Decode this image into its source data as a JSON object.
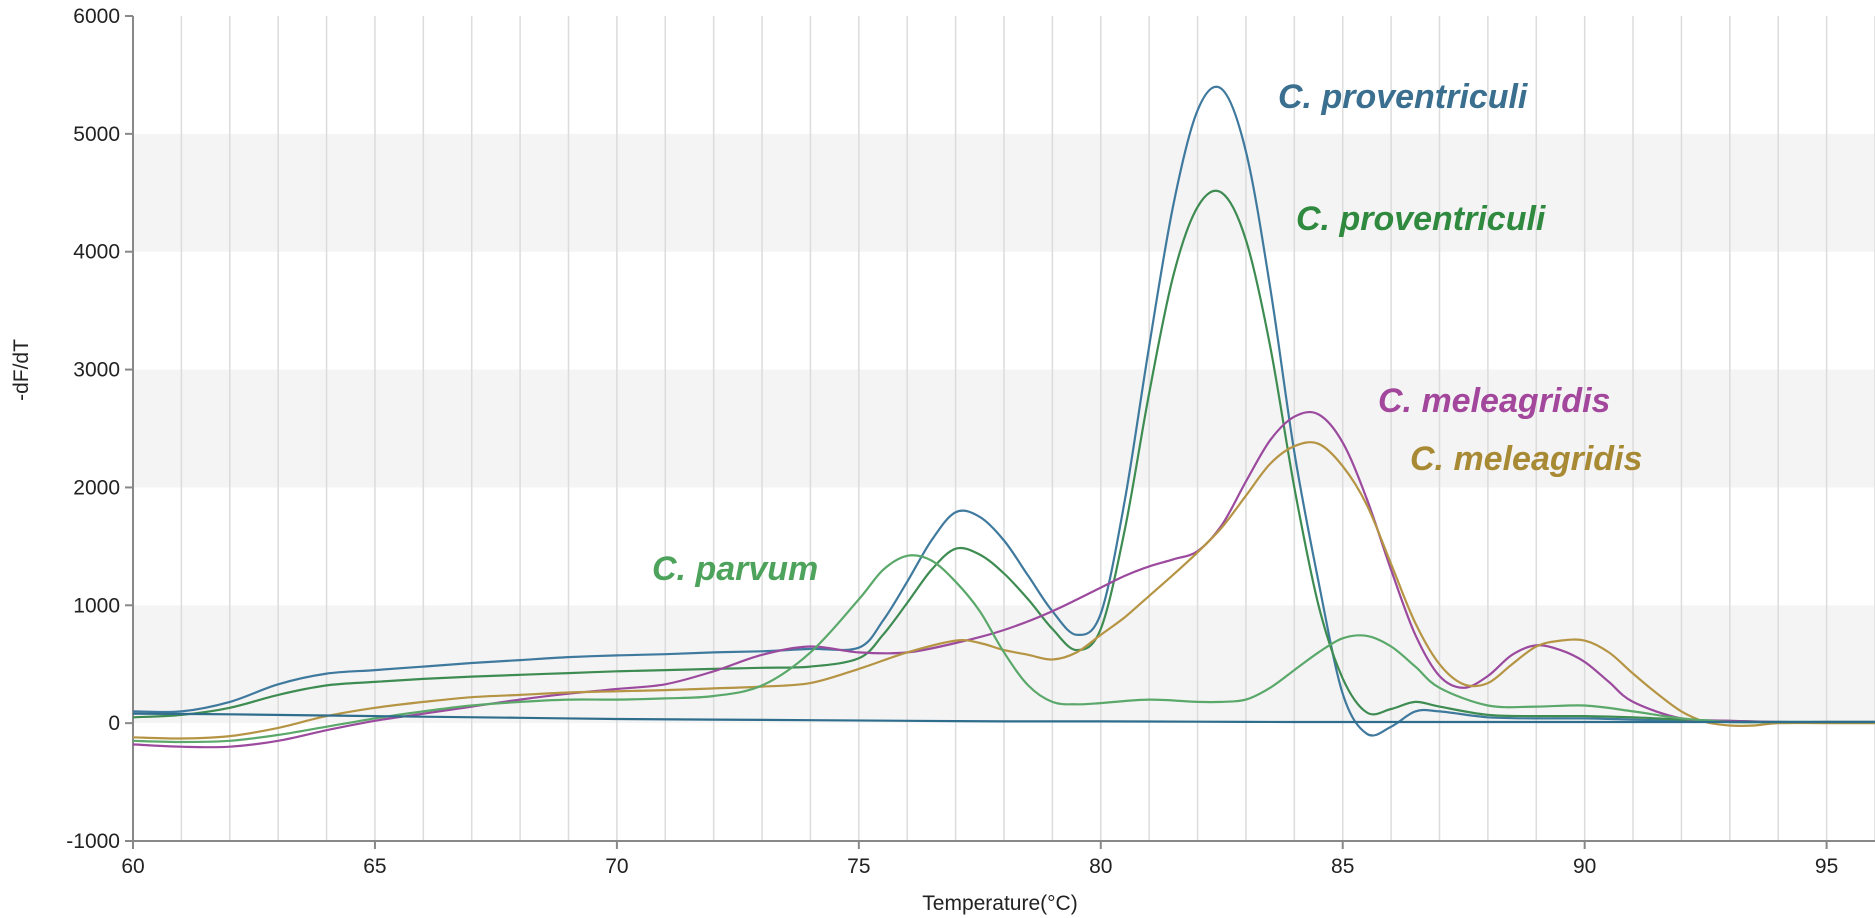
{
  "chart_data": {
    "type": "line",
    "title": "",
    "xlabel": "Temperature(°C)",
    "ylabel": "-dF/dT",
    "xlim": [
      60,
      96
    ],
    "ylim": [
      -1000,
      6000
    ],
    "xticks": [
      60,
      65,
      70,
      75,
      80,
      85,
      90,
      95
    ],
    "yticks": [
      -1000,
      0,
      1000,
      2000,
      3000,
      4000,
      5000,
      6000
    ],
    "grid": "vertical gridlines every 1 °C; alternating horizontal bands",
    "legend": "none",
    "annotations": [
      {
        "text": "C. proventriculi",
        "color": "#3a6f8f",
        "series": "blue"
      },
      {
        "text": "C. proventriculi",
        "color": "#2f8a3f",
        "series": "dark green"
      },
      {
        "text": "C. meleagridis",
        "color": "#a3479c",
        "series": "purple"
      },
      {
        "text": "C. meleagridis",
        "color": "#a88a35",
        "series": "gold"
      },
      {
        "text": "C. parvum",
        "color": "#4ea35c",
        "series": "light green"
      }
    ],
    "series": [
      {
        "color": "#3f7a9e",
        "x": [
          60,
          61,
          62,
          63,
          64,
          65,
          66,
          67,
          68,
          69,
          70,
          71,
          72,
          73,
          74,
          75,
          75.5,
          76,
          76.5,
          77,
          77.5,
          78,
          78.5,
          79,
          79.5,
          80,
          80.5,
          81,
          81.5,
          82,
          82.5,
          83,
          83.5,
          84,
          84.5,
          85,
          85.5,
          86,
          86.5,
          87,
          88,
          89,
          90,
          91,
          92,
          93,
          94,
          95,
          96
        ],
        "y": [
          100,
          100,
          180,
          330,
          420,
          450,
          480,
          510,
          535,
          560,
          575,
          585,
          600,
          610,
          630,
          640,
          870,
          1200,
          1550,
          1790,
          1750,
          1550,
          1250,
          950,
          750,
          930,
          1900,
          3200,
          4400,
          5200,
          5380,
          4850,
          3700,
          2300,
          1200,
          250,
          -90,
          -30,
          100,
          100,
          50,
          40,
          40,
          30,
          20,
          10,
          10,
          10,
          10
        ]
      },
      {
        "color": "#3e8c52",
        "x": [
          60,
          61,
          62,
          63,
          64,
          65,
          66,
          67,
          68,
          69,
          70,
          71,
          72,
          73,
          74,
          75,
          75.5,
          76,
          76.5,
          77,
          77.5,
          78,
          78.5,
          79,
          79.5,
          80,
          80.5,
          81,
          81.5,
          82,
          82.5,
          83,
          83.5,
          84,
          84.5,
          85,
          85.5,
          86,
          86.5,
          87,
          88,
          89,
          90,
          91,
          92,
          93,
          94,
          95,
          96
        ],
        "y": [
          50,
          70,
          130,
          240,
          320,
          350,
          375,
          395,
          410,
          425,
          440,
          450,
          460,
          470,
          480,
          550,
          750,
          1020,
          1300,
          1480,
          1430,
          1270,
          1050,
          800,
          620,
          800,
          1650,
          2800,
          3800,
          4380,
          4500,
          4100,
          3200,
          2000,
          1000,
          380,
          90,
          120,
          180,
          140,
          70,
          60,
          60,
          50,
          30,
          20,
          10,
          10,
          10
        ]
      },
      {
        "color": "#9b4a9e",
        "x": [
          60,
          61,
          62,
          63,
          64,
          65,
          66,
          67,
          68,
          69,
          70,
          71,
          72,
          73,
          74,
          75,
          76,
          77,
          78,
          79,
          80,
          80.5,
          81,
          81.5,
          82,
          82.5,
          83,
          83.5,
          84,
          84.5,
          85,
          85.5,
          86,
          86.5,
          87,
          87.5,
          88,
          88.5,
          89,
          89.5,
          90,
          90.5,
          91,
          92,
          93,
          94,
          95,
          96
        ],
        "y": [
          -180,
          -200,
          -200,
          -150,
          -60,
          20,
          80,
          140,
          200,
          250,
          290,
          330,
          440,
          580,
          650,
          600,
          600,
          680,
          790,
          950,
          1150,
          1250,
          1330,
          1390,
          1460,
          1680,
          2050,
          2400,
          2600,
          2620,
          2380,
          1900,
          1300,
          750,
          400,
          300,
          400,
          580,
          660,
          620,
          520,
          350,
          180,
          40,
          20,
          10,
          10,
          10
        ]
      },
      {
        "color": "#b59444",
        "x": [
          60,
          61,
          62,
          63,
          64,
          65,
          66,
          67,
          68,
          69,
          70,
          71,
          72,
          73,
          74,
          75,
          76,
          77,
          77.5,
          78,
          78.5,
          79,
          79.5,
          80,
          80.5,
          81,
          81.5,
          82,
          82.5,
          83,
          83.5,
          84,
          84.5,
          85,
          85.5,
          86,
          86.5,
          87,
          87.5,
          88,
          88.5,
          89,
          89.5,
          90,
          90.5,
          91,
          91.5,
          92,
          92.5,
          93,
          93.5,
          94,
          95,
          96
        ],
        "y": [
          -120,
          -130,
          -110,
          -40,
          60,
          130,
          180,
          220,
          240,
          260,
          270,
          280,
          295,
          310,
          340,
          460,
          600,
          700,
          680,
          620,
          580,
          540,
          600,
          750,
          900,
          1080,
          1260,
          1450,
          1660,
          1930,
          2200,
          2350,
          2370,
          2180,
          1850,
          1350,
          850,
          500,
          330,
          340,
          500,
          650,
          700,
          700,
          600,
          420,
          250,
          100,
          10,
          -20,
          -20,
          0,
          0,
          0
        ]
      },
      {
        "color": "#5aa86a",
        "x": [
          60,
          61,
          62,
          63,
          64,
          65,
          66,
          67,
          68,
          69,
          70,
          71,
          72,
          73,
          74,
          75,
          75.5,
          76,
          76.5,
          77,
          77.5,
          78,
          78.5,
          79,
          79.5,
          80,
          81,
          82,
          82.5,
          83,
          83.5,
          84,
          84.5,
          85,
          85.5,
          86,
          86.5,
          87,
          88,
          89,
          90,
          91,
          92,
          93,
          94,
          95,
          96
        ],
        "y": [
          -150,
          -160,
          -150,
          -100,
          -30,
          40,
          100,
          150,
          180,
          200,
          200,
          210,
          230,
          320,
          600,
          1050,
          1300,
          1420,
          1380,
          1200,
          950,
          600,
          320,
          180,
          160,
          170,
          200,
          180,
          180,
          200,
          300,
          450,
          600,
          720,
          740,
          650,
          480,
          300,
          150,
          140,
          150,
          100,
          40,
          10,
          10,
          10,
          10
        ]
      },
      {
        "color": "#2f6d8c",
        "x": [
          60,
          62,
          64,
          66,
          68,
          70,
          72,
          74,
          76,
          78,
          80,
          82,
          84,
          86,
          88,
          90,
          92,
          94,
          96
        ],
        "y": [
          80,
          75,
          65,
          55,
          45,
          35,
          30,
          25,
          20,
          15,
          15,
          12,
          10,
          10,
          10,
          10,
          10,
          10,
          10
        ]
      }
    ]
  }
}
